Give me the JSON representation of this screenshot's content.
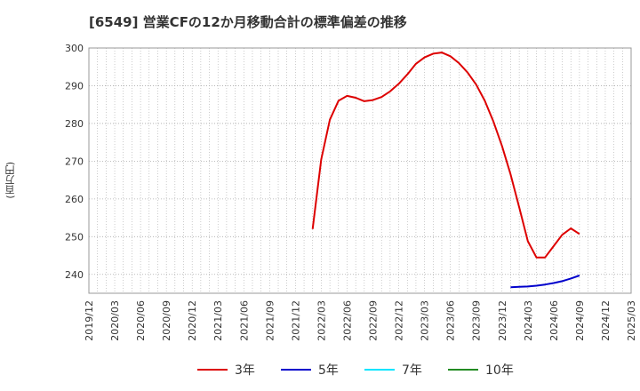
{
  "chart_data": {
    "type": "line",
    "title": "[6549]  営業CFの12か月移動合計の標準偏差の推移",
    "ylabel": "(百万円)",
    "xlabel": "",
    "ylim": [
      235,
      300
    ],
    "yticks": [
      240,
      250,
      260,
      270,
      280,
      290,
      300
    ],
    "grid": true,
    "legend_position": "bottom",
    "x_ticks": [
      "2019/12",
      "2020/03",
      "2020/06",
      "2020/09",
      "2020/12",
      "2021/03",
      "2021/06",
      "2021/09",
      "2021/12",
      "2022/03",
      "2022/06",
      "2022/09",
      "2022/12",
      "2023/03",
      "2023/06",
      "2023/09",
      "2023/12",
      "2024/03",
      "2024/06",
      "2024/09",
      "2024/12",
      "2025/03"
    ],
    "x_start": "2019/12",
    "series": [
      {
        "name": "3年",
        "color": "#dd0000",
        "x": [
          "2022/02",
          "2022/03",
          "2022/04",
          "2022/05",
          "2022/06",
          "2022/07",
          "2022/08",
          "2022/09",
          "2022/10",
          "2022/11",
          "2022/12",
          "2023/01",
          "2023/02",
          "2023/03",
          "2023/04",
          "2023/05",
          "2023/06",
          "2023/07",
          "2023/08",
          "2023/09",
          "2023/10",
          "2023/11",
          "2023/12",
          "2024/01",
          "2024/02",
          "2024/03",
          "2024/04",
          "2024/05",
          "2024/06",
          "2024/07",
          "2024/08",
          "2024/09"
        ],
        "values": [
          252.0,
          270.5,
          281.0,
          286.0,
          287.3,
          286.8,
          285.9,
          286.2,
          287.0,
          288.5,
          290.5,
          293.0,
          295.8,
          297.5,
          298.5,
          298.8,
          297.8,
          296.0,
          293.5,
          290.3,
          286.0,
          280.5,
          274.0,
          266.5,
          257.8,
          248.8,
          244.5,
          244.5,
          247.5,
          250.5,
          252.2,
          250.7
        ]
      },
      {
        "name": "5年",
        "color": "#0000cc",
        "x": [
          "2024/01",
          "2024/02",
          "2024/03",
          "2024/04",
          "2024/05",
          "2024/06",
          "2024/07",
          "2024/08",
          "2024/09"
        ],
        "values": [
          236.6,
          236.7,
          236.8,
          237.0,
          237.3,
          237.7,
          238.2,
          238.9,
          239.7
        ]
      },
      {
        "name": "7年",
        "color": "#00e5ff",
        "x": [],
        "values": []
      },
      {
        "name": "10年",
        "color": "#228b22",
        "x": [],
        "values": []
      }
    ]
  }
}
